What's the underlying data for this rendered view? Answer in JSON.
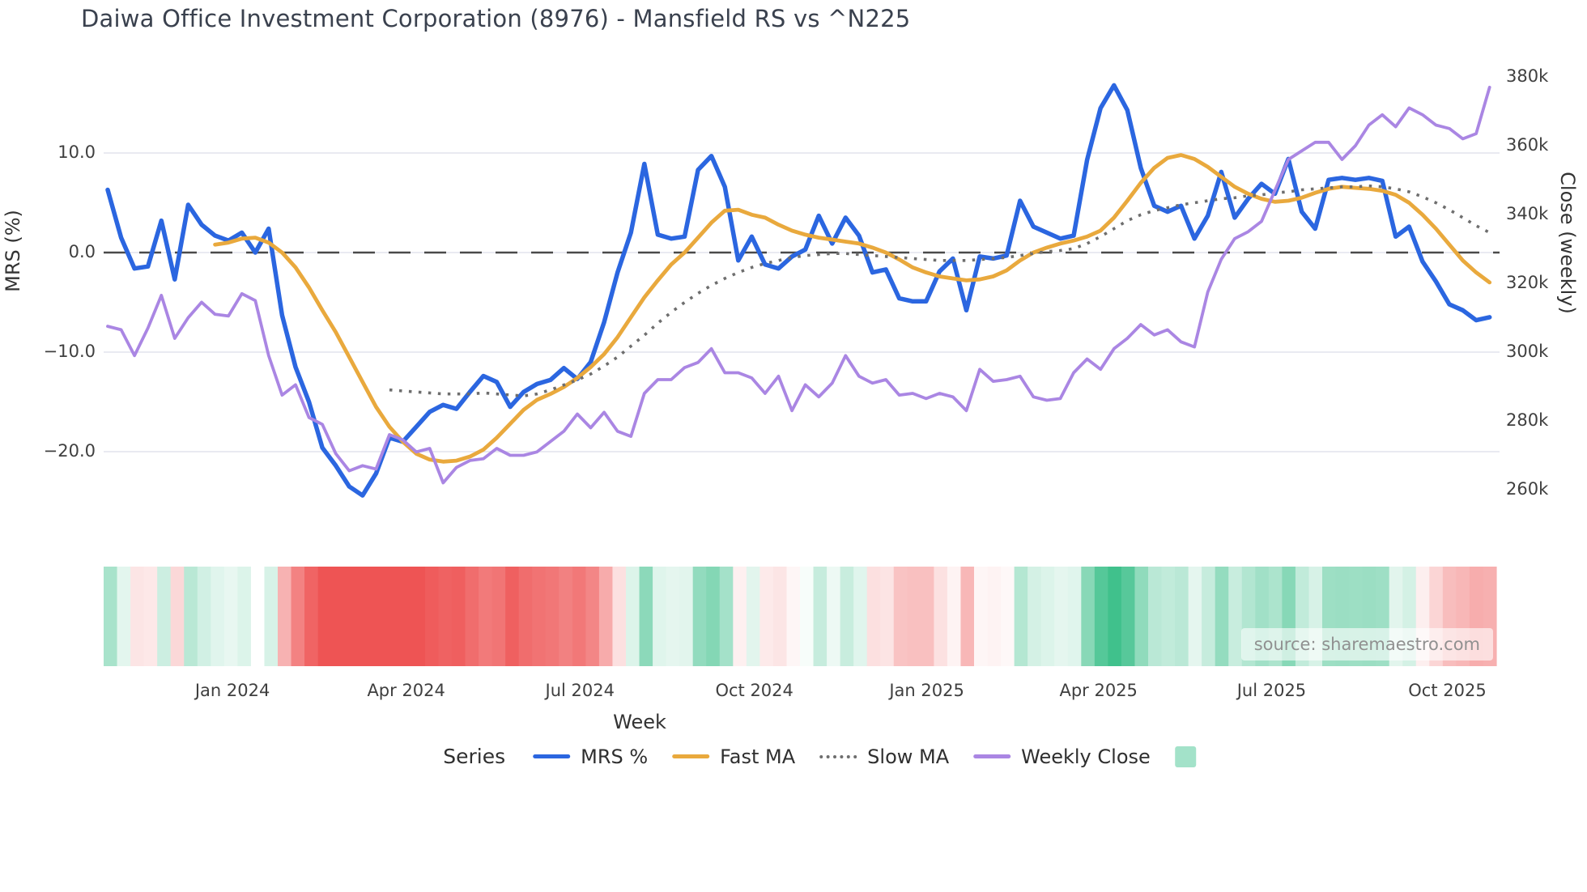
{
  "title": "Daiwa Office Investment Corporation (8976) - Mansfield RS vs ^N225",
  "source_note": "source: sharemaestro.com",
  "colors": {
    "mrs": "#2b66e0",
    "fast_ma": "#e9a93d",
    "slow_ma": "#6e6e6e",
    "weekly_close": "#aa86e3",
    "heat_positive": "#3ec08b",
    "heat_negative": "#ee5454",
    "heat_swatch": "#a3e2c9",
    "gridline": "#e9eaf1",
    "zero_line": "#4a4a4a",
    "text_dark": "#3a414e",
    "text_muted": "#909090"
  },
  "axes": {
    "left": {
      "title": "MRS (%)",
      "ticks": [
        {
          "label": "10.0",
          "value": 10
        },
        {
          "label": "0.0",
          "value": 0
        },
        {
          "label": "−10.0",
          "value": -10
        },
        {
          "label": "−20.0",
          "value": -20
        }
      ]
    },
    "right": {
      "title": "Close (weekly)",
      "ticks": [
        {
          "label": "380k",
          "value": 380
        },
        {
          "label": "360k",
          "value": 360
        },
        {
          "label": "340k",
          "value": 340
        },
        {
          "label": "320k",
          "value": 320
        },
        {
          "label": "300k",
          "value": 300
        },
        {
          "label": "280k",
          "value": 280
        },
        {
          "label": "260k",
          "value": 260
        }
      ]
    },
    "x": {
      "title": "Week",
      "ticks": [
        {
          "label": "Jan 2024",
          "week": 9.3
        },
        {
          "label": "Apr 2024",
          "week": 22.25
        },
        {
          "label": "Jul 2024",
          "week": 35.2
        },
        {
          "label": "Oct 2024",
          "week": 48.2
        },
        {
          "label": "Jan 2025",
          "week": 61.05
        },
        {
          "label": "Apr 2025",
          "week": 73.85
        },
        {
          "label": "Jul 2025",
          "week": 86.75
        },
        {
          "label": "Oct 2025",
          "week": 99.85
        }
      ]
    }
  },
  "legend": {
    "title": "Series",
    "items": [
      {
        "label": "MRS %",
        "swatch": "line",
        "color": "#2b66e0"
      },
      {
        "label": "Fast MA",
        "swatch": "line",
        "color": "#e9a93d"
      },
      {
        "label": "Slow MA",
        "swatch": "dotted-line",
        "color": "#6e6e6e"
      },
      {
        "label": "Weekly Close",
        "swatch": "line",
        "color": "#aa86e3"
      },
      {
        "label": "",
        "swatch": "square",
        "color": "#a3e2c9"
      }
    ]
  },
  "chart_data": {
    "type": "line",
    "x_axis": {
      "unit": "weekly",
      "points": 104,
      "start": "Nov 2023",
      "end": "Nov 2025"
    },
    "ylim_left": [
      -26,
      18
    ],
    "ylim_right_thousands": [
      255,
      385
    ],
    "grid": "horizontal at left-axis ticks, dashed zero line",
    "legend_position": "bottom",
    "series": [
      {
        "name": "MRS %",
        "axis": "left",
        "color": "#2b66e0",
        "width": 5.5,
        "dash": "solid",
        "values": [
          6.3,
          1.5,
          -1.6,
          -1.4,
          3.2,
          -2.7,
          4.8,
          2.8,
          1.7,
          1.2,
          2.0,
          0.0,
          2.4,
          -6.3,
          -11.5,
          -15.0,
          -19.6,
          -21.4,
          -23.5,
          -24.4,
          -22.2,
          -18.6,
          -19.0,
          -17.5,
          -16.0,
          -15.3,
          -15.7,
          -14.0,
          -12.4,
          -13.0,
          -15.5,
          -14.0,
          -13.2,
          -12.8,
          -11.6,
          -12.7,
          -11.0,
          -7.0,
          -2.0,
          2.0,
          8.9,
          1.8,
          1.4,
          1.6,
          8.3,
          9.7,
          6.6,
          -0.8,
          1.6,
          -1.2,
          -1.6,
          -0.4,
          0.3,
          3.7,
          0.9,
          3.5,
          1.7,
          -2.0,
          -1.7,
          -4.6,
          -4.9,
          -4.9,
          -1.9,
          -0.6,
          -5.8,
          -0.4,
          -0.6,
          -0.3,
          5.2,
          2.6,
          2.0,
          1.4,
          1.7,
          9.3,
          14.5,
          16.8,
          14.3,
          8.5,
          4.7,
          4.1,
          4.7,
          1.4,
          3.7,
          8.1,
          3.5,
          5.4,
          6.9,
          5.9,
          9.4,
          4.1,
          2.4,
          7.3,
          7.5,
          7.3,
          7.5,
          7.2,
          1.6,
          2.6,
          -0.9,
          -2.9,
          -5.2,
          -5.8,
          -6.8,
          -6.5
        ]
      },
      {
        "name": "Fast MA",
        "axis": "left",
        "color": "#e9a93d",
        "width": 4.8,
        "dash": "solid",
        "values": [
          null,
          null,
          null,
          null,
          null,
          null,
          null,
          null,
          0.8,
          1.0,
          1.4,
          1.5,
          1.0,
          0.0,
          -1.5,
          -3.5,
          -5.8,
          -8.0,
          -10.5,
          -13.0,
          -15.5,
          -17.5,
          -19.0,
          -20.2,
          -20.8,
          -21.0,
          -20.9,
          -20.5,
          -19.8,
          -18.6,
          -17.2,
          -15.8,
          -14.8,
          -14.2,
          -13.5,
          -12.6,
          -11.5,
          -10.2,
          -8.5,
          -6.5,
          -4.5,
          -2.8,
          -1.2,
          0.0,
          1.5,
          3.0,
          4.2,
          4.3,
          3.8,
          3.5,
          2.8,
          2.2,
          1.8,
          1.5,
          1.3,
          1.1,
          0.9,
          0.5,
          0.0,
          -0.7,
          -1.5,
          -2.0,
          -2.4,
          -2.6,
          -2.8,
          -2.7,
          -2.4,
          -1.8,
          -0.8,
          0.0,
          0.5,
          0.9,
          1.2,
          1.6,
          2.2,
          3.5,
          5.2,
          7.0,
          8.5,
          9.5,
          9.8,
          9.4,
          8.6,
          7.6,
          6.6,
          5.9,
          5.4,
          5.1,
          5.2,
          5.5,
          6.0,
          6.4,
          6.6,
          6.5,
          6.4,
          6.2,
          5.8,
          5.0,
          3.8,
          2.4,
          0.8,
          -0.8,
          -2.0,
          -3.0
        ]
      },
      {
        "name": "Slow MA",
        "axis": "left",
        "color": "#6e6e6e",
        "width": 3.6,
        "dash": "dotted",
        "values": [
          null,
          null,
          null,
          null,
          null,
          null,
          null,
          null,
          null,
          null,
          null,
          null,
          null,
          null,
          null,
          null,
          null,
          null,
          null,
          null,
          null,
          -13.8,
          -13.9,
          -14.0,
          -14.1,
          -14.2,
          -14.2,
          -14.2,
          -14.1,
          -14.2,
          -14.3,
          -14.4,
          -14.2,
          -13.8,
          -13.3,
          -12.8,
          -12.2,
          -11.4,
          -10.5,
          -9.4,
          -8.3,
          -7.1,
          -6.0,
          -5.0,
          -4.1,
          -3.3,
          -2.6,
          -2.0,
          -1.5,
          -1.1,
          -0.8,
          -0.5,
          -0.3,
          -0.2,
          -0.1,
          -0.1,
          -0.2,
          -0.3,
          -0.4,
          -0.5,
          -0.6,
          -0.7,
          -0.8,
          -0.8,
          -0.8,
          -0.7,
          -0.6,
          -0.5,
          -0.3,
          -0.1,
          0.1,
          0.2,
          0.4,
          0.9,
          1.6,
          2.4,
          3.2,
          3.8,
          4.2,
          4.5,
          4.8,
          5.0,
          5.2,
          5.4,
          5.5,
          5.7,
          5.8,
          6.0,
          6.1,
          6.3,
          6.4,
          6.5,
          6.6,
          6.6,
          6.7,
          6.6,
          6.4,
          6.1,
          5.6,
          5.0,
          4.3,
          3.5,
          2.7,
          2.0
        ]
      },
      {
        "name": "Weekly Close",
        "axis": "right",
        "unit": "thousand",
        "color": "#aa86e3",
        "width": 3.8,
        "dash": "solid",
        "values": [
          307.5,
          306.5,
          299,
          307,
          316.5,
          304,
          310,
          314.5,
          311,
          310.5,
          317,
          315,
          299,
          287.5,
          290.5,
          281,
          279,
          270.5,
          265.5,
          267,
          266,
          276,
          274.5,
          271,
          272,
          262,
          266.5,
          268.5,
          269,
          272,
          270,
          270,
          271,
          274,
          277,
          282,
          278,
          282.5,
          277,
          275.5,
          288,
          292,
          292,
          295.5,
          297,
          301,
          294,
          294,
          292.5,
          288,
          293,
          283,
          290.5,
          287,
          291,
          299,
          293,
          291,
          292,
          287.5,
          288,
          286.5,
          288,
          287,
          283,
          295,
          291.5,
          292,
          293,
          287,
          286,
          286.5,
          294,
          298,
          295,
          301,
          304,
          308,
          305,
          306.5,
          303,
          301.5,
          317.5,
          327,
          333,
          335,
          338,
          347,
          356,
          358.5,
          361,
          361,
          356,
          360,
          366,
          369,
          365.5,
          371,
          369,
          366,
          365,
          362,
          363.5,
          377
        ]
      }
    ],
    "heatmap_band": {
      "based_on": "MRS % sign and magnitude per week",
      "positive_color": "#3ec08b",
      "negative_color": "#ee5454",
      "max_abs_value": 17,
      "gamma": 0.8
    }
  }
}
